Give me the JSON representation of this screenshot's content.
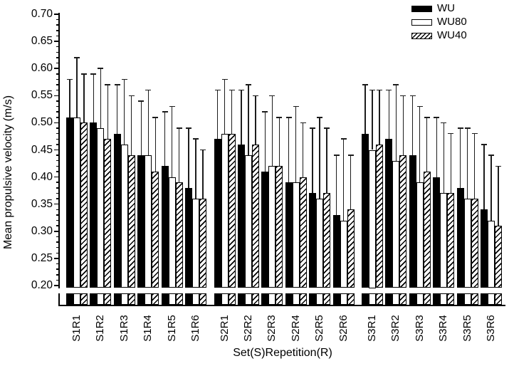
{
  "chart_data": {
    "type": "bar",
    "title": "",
    "xlabel": "Set(S)Repetition(R)",
    "ylabel": "Mean propulsive velocity (m/s)",
    "ylim": [
      0.2,
      0.7
    ],
    "ytick_step": 0.05,
    "ytick_minor_step": 0.01,
    "ytick_labels": [
      "0.70",
      "0.65",
      "0.60",
      "0.55",
      "0.50",
      "0.45",
      "0.40",
      "0.35",
      "0.30",
      "0.25",
      "0.20"
    ],
    "axis_break_at_bottom": true,
    "grid": false,
    "legend_position": "top-right",
    "error_bars": "upper-only",
    "bar_color": "#000000",
    "background_color": "#ffffff",
    "categories": [
      "S1R1",
      "S1R2",
      "S1R3",
      "S1R4",
      "S1R5",
      "S1R6",
      "S2R1",
      "S2R2",
      "S2R3",
      "S2R4",
      "S2R5",
      "S2R6",
      "S3R1",
      "S3R2",
      "S3R3",
      "S3R4",
      "S3R5",
      "S3R6"
    ],
    "series": [
      {
        "name": "WU",
        "fill": "solid-black",
        "values": [
          0.51,
          0.5,
          0.48,
          0.44,
          0.42,
          0.38,
          0.47,
          0.46,
          0.41,
          0.39,
          0.37,
          0.33,
          0.48,
          0.47,
          0.44,
          0.4,
          0.38,
          0.34
        ],
        "err_tops": [
          0.58,
          0.59,
          0.57,
          0.54,
          0.52,
          0.49,
          0.56,
          0.56,
          0.52,
          0.51,
          0.49,
          0.44,
          0.57,
          0.56,
          0.55,
          0.51,
          0.49,
          0.46
        ]
      },
      {
        "name": "WU80",
        "fill": "white",
        "values": [
          0.51,
          0.49,
          0.46,
          0.44,
          0.4,
          0.36,
          0.48,
          0.44,
          0.42,
          0.39,
          0.36,
          0.32,
          0.45,
          0.43,
          0.39,
          0.37,
          0.36,
          0.32
        ],
        "err_tops": [
          0.62,
          0.6,
          0.58,
          0.56,
          0.53,
          0.47,
          0.58,
          0.57,
          0.55,
          0.53,
          0.51,
          0.47,
          0.56,
          0.57,
          0.53,
          0.5,
          0.49,
          0.44
        ]
      },
      {
        "name": "WU40",
        "fill": "diagonal-hatch",
        "values": [
          0.5,
          0.47,
          0.44,
          0.41,
          0.39,
          0.36,
          0.48,
          0.46,
          0.42,
          0.4,
          0.37,
          0.34,
          0.46,
          0.44,
          0.41,
          0.37,
          0.36,
          0.31
        ],
        "err_tops": [
          0.59,
          0.57,
          0.55,
          0.51,
          0.49,
          0.45,
          0.56,
          0.55,
          0.51,
          0.5,
          0.49,
          0.44,
          0.56,
          0.55,
          0.51,
          0.48,
          0.48,
          0.42
        ]
      }
    ]
  }
}
